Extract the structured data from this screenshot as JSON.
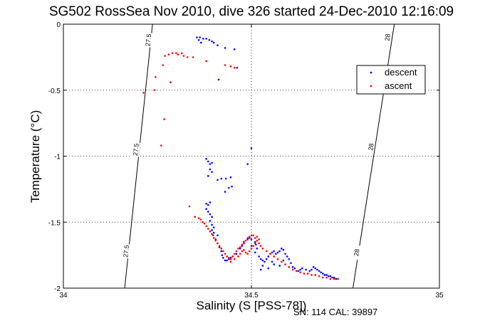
{
  "chart_data": {
    "type": "scatter",
    "title": "SG502 RossSea Nov 2010, dive 326 started 24-Dec-2010 12:16:09",
    "xlabel": "Salinity (S [PSS-78])",
    "ylabel": "Temperature (°C)",
    "xlim": [
      34,
      35
    ],
    "ylim": [
      -2,
      0
    ],
    "xticks": [
      "34",
      "34.5",
      "35"
    ],
    "yticks": [
      "0",
      "-0.5",
      "-1",
      "-1.5",
      "-2"
    ],
    "grid": true,
    "legend_position": "top-right",
    "footer": "SN: 114  CAL: 39897",
    "density_contours": [
      {
        "label": "27.5",
        "points": [
          [
            34.163,
            -2.0
          ],
          [
            34.237,
            0.0
          ]
        ],
        "label_positions": [
          [
            34.226,
            -0.12
          ],
          [
            34.193,
            -0.95
          ],
          [
            34.167,
            -1.72
          ]
        ]
      },
      {
        "label": "28",
        "points": [
          [
            34.77,
            -2.0
          ],
          [
            34.88,
            0.0
          ]
        ],
        "label_positions": [
          [
            34.862,
            -0.1
          ],
          [
            34.818,
            -0.93
          ],
          [
            34.78,
            -1.73
          ]
        ]
      }
    ],
    "series": [
      {
        "name": "descent",
        "color": "#0000ff",
        "points": [
          [
            34.355,
            -0.1
          ],
          [
            34.363,
            -0.1
          ],
          [
            34.372,
            -0.11
          ],
          [
            34.38,
            -0.11
          ],
          [
            34.388,
            -0.12
          ],
          [
            34.395,
            -0.13
          ],
          [
            34.4,
            -0.14
          ],
          [
            34.41,
            -0.16
          ],
          [
            34.36,
            -0.12
          ],
          [
            34.366,
            -0.14
          ],
          [
            34.43,
            -0.18
          ],
          [
            34.455,
            -0.19
          ],
          [
            34.462,
            -0.33
          ],
          [
            34.413,
            -0.42
          ],
          [
            34.38,
            -1.02
          ],
          [
            34.385,
            -1.04
          ],
          [
            34.39,
            -1.06
          ],
          [
            34.395,
            -1.05
          ],
          [
            34.39,
            -1.1
          ],
          [
            34.395,
            -1.12
          ],
          [
            34.385,
            -1.15
          ],
          [
            34.41,
            -1.18
          ],
          [
            34.42,
            -1.17
          ],
          [
            34.432,
            -1.17
          ],
          [
            34.445,
            -1.16
          ],
          [
            34.49,
            -1.06
          ],
          [
            34.5,
            -0.94
          ],
          [
            34.448,
            -1.23
          ],
          [
            34.43,
            -1.27
          ],
          [
            34.44,
            -1.24
          ],
          [
            34.38,
            -1.36
          ],
          [
            34.385,
            -1.37
          ],
          [
            34.39,
            -1.35
          ],
          [
            34.38,
            -1.4
          ],
          [
            34.385,
            -1.42
          ],
          [
            34.39,
            -1.44
          ],
          [
            34.395,
            -1.46
          ],
          [
            34.39,
            -1.49
          ],
          [
            34.395,
            -1.52
          ],
          [
            34.4,
            -1.54
          ],
          [
            34.395,
            -1.56
          ],
          [
            34.4,
            -1.58
          ],
          [
            34.41,
            -1.6
          ],
          [
            34.405,
            -1.63
          ],
          [
            34.41,
            -1.66
          ],
          [
            34.415,
            -1.69
          ],
          [
            34.42,
            -1.72
          ],
          [
            34.422,
            -1.75
          ],
          [
            34.425,
            -1.77
          ],
          [
            34.43,
            -1.79
          ],
          [
            34.435,
            -1.79
          ],
          [
            34.44,
            -1.78
          ],
          [
            34.445,
            -1.77
          ],
          [
            34.45,
            -1.76
          ],
          [
            34.46,
            -1.74
          ],
          [
            34.47,
            -1.7
          ],
          [
            34.475,
            -1.68
          ],
          [
            34.48,
            -1.65
          ],
          [
            34.49,
            -1.63
          ],
          [
            34.495,
            -1.62
          ],
          [
            34.5,
            -1.63
          ],
          [
            34.51,
            -1.65
          ],
          [
            34.512,
            -1.67
          ],
          [
            34.515,
            -1.7
          ],
          [
            34.51,
            -1.73
          ],
          [
            34.52,
            -1.76
          ],
          [
            34.525,
            -1.78
          ],
          [
            34.53,
            -1.79
          ],
          [
            34.535,
            -1.8
          ],
          [
            34.54,
            -1.78
          ],
          [
            34.545,
            -1.76
          ],
          [
            34.55,
            -1.74
          ],
          [
            34.555,
            -1.73
          ],
          [
            34.56,
            -1.72
          ],
          [
            34.565,
            -1.74
          ],
          [
            34.57,
            -1.73
          ],
          [
            34.575,
            -1.72
          ],
          [
            34.58,
            -1.7
          ],
          [
            34.585,
            -1.71
          ],
          [
            34.59,
            -1.74
          ],
          [
            34.595,
            -1.76
          ],
          [
            34.6,
            -1.78
          ],
          [
            34.605,
            -1.81
          ],
          [
            34.61,
            -1.84
          ],
          [
            34.615,
            -1.85
          ],
          [
            34.62,
            -1.87
          ],
          [
            34.625,
            -1.87
          ],
          [
            34.63,
            -1.86
          ],
          [
            34.635,
            -1.85
          ],
          [
            34.645,
            -1.86
          ],
          [
            34.655,
            -1.87
          ],
          [
            34.66,
            -1.86
          ],
          [
            34.665,
            -1.84
          ],
          [
            34.67,
            -1.85
          ],
          [
            34.675,
            -1.86
          ],
          [
            34.68,
            -1.87
          ],
          [
            34.685,
            -1.88
          ],
          [
            34.69,
            -1.89
          ],
          [
            34.695,
            -1.9
          ],
          [
            34.7,
            -1.9
          ],
          [
            34.705,
            -1.91
          ],
          [
            34.71,
            -1.91
          ],
          [
            34.715,
            -1.92
          ],
          [
            34.72,
            -1.92
          ],
          [
            34.725,
            -1.93
          ],
          [
            34.73,
            -1.93
          ],
          [
            34.53,
            -1.83
          ],
          [
            34.525,
            -1.86
          ],
          [
            34.545,
            -1.85
          ],
          [
            34.555,
            -1.8
          ],
          [
            34.56,
            -1.82
          ],
          [
            34.575,
            -1.83
          ],
          [
            34.585,
            -1.79
          ],
          [
            34.5,
            -1.68
          ]
        ]
      },
      {
        "name": "ascent",
        "color": "#ff0000",
        "points": [
          [
            34.27,
            -0.24
          ],
          [
            34.28,
            -0.23
          ],
          [
            34.29,
            -0.22
          ],
          [
            34.3,
            -0.22
          ],
          [
            34.305,
            -0.23
          ],
          [
            34.315,
            -0.22
          ],
          [
            34.32,
            -0.24
          ],
          [
            34.33,
            -0.25
          ],
          [
            34.345,
            -0.25
          ],
          [
            34.38,
            -0.28
          ],
          [
            34.43,
            -0.31
          ],
          [
            34.445,
            -0.32
          ],
          [
            34.455,
            -0.33
          ],
          [
            34.265,
            -0.31
          ],
          [
            34.245,
            -0.4
          ],
          [
            34.285,
            -0.44
          ],
          [
            34.242,
            -0.5
          ],
          [
            34.213,
            -0.52
          ],
          [
            34.268,
            -0.72
          ],
          [
            34.26,
            -0.92
          ],
          [
            34.335,
            -1.38
          ],
          [
            34.35,
            -1.46
          ],
          [
            34.36,
            -1.47
          ],
          [
            34.365,
            -1.48
          ],
          [
            34.37,
            -1.5
          ],
          [
            34.375,
            -1.51
          ],
          [
            34.38,
            -1.53
          ],
          [
            34.385,
            -1.55
          ],
          [
            34.39,
            -1.57
          ],
          [
            34.395,
            -1.59
          ],
          [
            34.398,
            -1.6
          ],
          [
            34.4,
            -1.62
          ],
          [
            34.405,
            -1.64
          ],
          [
            34.41,
            -1.66
          ],
          [
            34.415,
            -1.68
          ],
          [
            34.42,
            -1.7
          ],
          [
            34.425,
            -1.72
          ],
          [
            34.43,
            -1.74
          ],
          [
            34.435,
            -1.76
          ],
          [
            34.44,
            -1.77
          ],
          [
            34.445,
            -1.78
          ],
          [
            34.45,
            -1.76
          ],
          [
            34.455,
            -1.74
          ],
          [
            34.46,
            -1.72
          ],
          [
            34.465,
            -1.7
          ],
          [
            34.47,
            -1.69
          ],
          [
            34.475,
            -1.67
          ],
          [
            34.48,
            -1.66
          ],
          [
            34.485,
            -1.64
          ],
          [
            34.49,
            -1.62
          ],
          [
            34.495,
            -1.61
          ],
          [
            34.5,
            -1.6
          ],
          [
            34.505,
            -1.6
          ],
          [
            34.51,
            -1.62
          ],
          [
            34.515,
            -1.64
          ],
          [
            34.52,
            -1.66
          ],
          [
            34.525,
            -1.68
          ],
          [
            34.53,
            -1.7
          ],
          [
            34.54,
            -1.72
          ],
          [
            34.55,
            -1.74
          ],
          [
            34.56,
            -1.76
          ],
          [
            34.57,
            -1.78
          ],
          [
            34.58,
            -1.8
          ],
          [
            34.59,
            -1.82
          ],
          [
            34.6,
            -1.84
          ],
          [
            34.61,
            -1.86
          ],
          [
            34.62,
            -1.87
          ],
          [
            34.63,
            -1.88
          ],
          [
            34.64,
            -1.89
          ],
          [
            34.65,
            -1.89
          ],
          [
            34.66,
            -1.9
          ],
          [
            34.67,
            -1.9
          ],
          [
            34.68,
            -1.91
          ],
          [
            34.69,
            -1.92
          ],
          [
            34.7,
            -1.92
          ],
          [
            34.71,
            -1.93
          ],
          [
            34.72,
            -1.93
          ],
          [
            34.73,
            -1.93
          ],
          [
            34.515,
            -1.61
          ],
          [
            34.52,
            -1.63
          ],
          [
            34.51,
            -1.66
          ],
          [
            34.505,
            -1.68
          ],
          [
            34.5,
            -1.7
          ],
          [
            34.495,
            -1.72
          ],
          [
            34.49,
            -1.74
          ],
          [
            34.485,
            -1.73
          ],
          [
            34.48,
            -1.71
          ],
          [
            34.475,
            -1.72
          ],
          [
            34.47,
            -1.74
          ],
          [
            34.465,
            -1.76
          ],
          [
            34.455,
            -1.78
          ],
          [
            34.445,
            -1.8
          ]
        ]
      }
    ]
  }
}
